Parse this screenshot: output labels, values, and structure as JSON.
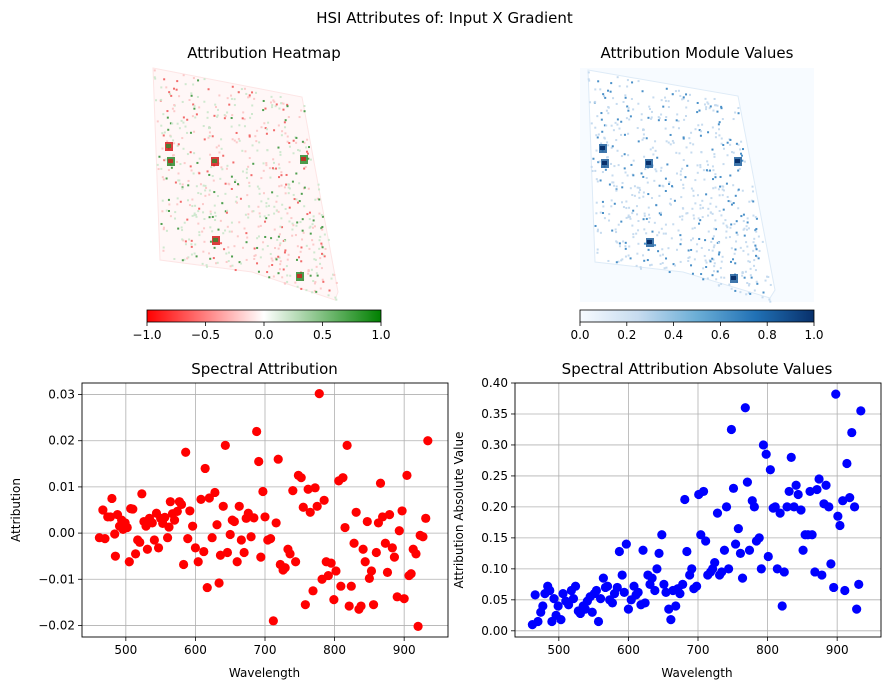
{
  "suptitle": "HSI Attributes of: Input X Gradient",
  "heatmap": {
    "title": "Attribution Heatmap",
    "colorbar_ticks": [
      "−1.0",
      "−0.5",
      "0.0",
      "0.5",
      "1.0"
    ],
    "colors": {
      "neg": "#ff0000",
      "mid": "#ffffff",
      "pos": "#008000"
    }
  },
  "module": {
    "title": "Attribution Module Values",
    "colorbar_ticks": [
      "0.0",
      "0.2",
      "0.4",
      "0.6",
      "0.8",
      "1.0"
    ],
    "colors": {
      "low": "#f7fbff",
      "high": "#08306b"
    }
  },
  "chart_data": [
    {
      "type": "scatter",
      "title": "Spectral Attribution",
      "xlabel": "Wavelength",
      "ylabel": "Attribution",
      "xlim": [
        437,
        963
      ],
      "ylim": [
        -0.0225,
        0.0325
      ],
      "xticks": [
        500,
        600,
        700,
        800,
        900
      ],
      "yticks": [
        -0.02,
        -0.01,
        0.0,
        0.01,
        0.02,
        0.03
      ],
      "ytick_labels": [
        "−0.02",
        "−0.01",
        "0.00",
        "0.01",
        "0.02",
        "0.03"
      ],
      "grid": true,
      "color": "#ff0000",
      "points": [
        [
          462,
          -0.001
        ],
        [
          467,
          0.005
        ],
        [
          470,
          -0.0012
        ],
        [
          474,
          0.0035
        ],
        [
          478,
          0.0035
        ],
        [
          480,
          0.0075
        ],
        [
          484,
          -0.0002
        ],
        [
          485,
          -0.005
        ],
        [
          488,
          0.004
        ],
        [
          491,
          0.0015
        ],
        [
          494,
          0.0028
        ],
        [
          496,
          0.0008
        ],
        [
          499,
          0.0022
        ],
        [
          502,
          0.0012
        ],
        [
          505,
          -0.0062
        ],
        [
          507,
          0.0053
        ],
        [
          510,
          0.0052
        ],
        [
          514,
          -0.0045
        ],
        [
          517,
          -0.0015
        ],
        [
          520,
          -0.002
        ],
        [
          523,
          0.0085
        ],
        [
          526,
          0.0025
        ],
        [
          529,
          0.0015
        ],
        [
          531,
          -0.0035
        ],
        [
          534,
          0.0032
        ],
        [
          538,
          0.0022
        ],
        [
          541,
          -0.0015
        ],
        [
          544,
          0.0043
        ],
        [
          547,
          -0.0032
        ],
        [
          550,
          0.0032
        ],
        [
          553,
          0.0021
        ],
        [
          556,
          0.0034
        ],
        [
          560,
          -0.001
        ],
        [
          562,
          0.0013
        ],
        [
          564,
          0.0068
        ],
        [
          567,
          0.0042
        ],
        [
          570,
          0.0028
        ],
        [
          574,
          0.0047
        ],
        [
          577,
          0.0068
        ],
        [
          580,
          0.0062
        ],
        [
          583,
          -0.0068
        ],
        [
          586,
          0.0175
        ],
        [
          589,
          -0.0012
        ],
        [
          592,
          0.0048
        ],
        [
          596,
          0.0015
        ],
        [
          600,
          -0.0032
        ],
        [
          604,
          -0.0062
        ],
        [
          608,
          0.0073
        ],
        [
          612,
          -0.004
        ],
        [
          614,
          0.014
        ],
        [
          617,
          -0.0118
        ],
        [
          620,
          0.0076
        ],
        [
          624,
          -0.001
        ],
        [
          628,
          0.0088
        ],
        [
          631,
          0.0018
        ],
        [
          634,
          -0.0108
        ],
        [
          636,
          -0.0048
        ],
        [
          640,
          0.0058
        ],
        [
          643,
          0.019
        ],
        [
          646,
          -0.0042
        ],
        [
          650,
          -0.0003
        ],
        [
          653,
          0.0028
        ],
        [
          656,
          0.0025
        ],
        [
          660,
          -0.0062
        ],
        [
          663,
          0.0058
        ],
        [
          666,
          -0.0015
        ],
        [
          670,
          -0.0042
        ],
        [
          673,
          0.0032
        ],
        [
          676,
          0.0043
        ],
        [
          680,
          -0.0008
        ],
        [
          684,
          0.0033
        ],
        [
          688,
          0.022
        ],
        [
          691,
          0.0155
        ],
        [
          694,
          -0.0052
        ],
        [
          697,
          0.009
        ],
        [
          700,
          0.0035
        ],
        [
          704,
          -0.0015
        ],
        [
          708,
          -0.0012
        ],
        [
          712,
          -0.019
        ],
        [
          716,
          0.0022
        ],
        [
          719,
          0.016
        ],
        [
          722,
          -0.0068
        ],
        [
          726,
          -0.008
        ],
        [
          729,
          -0.0075
        ],
        [
          733,
          -0.0035
        ],
        [
          736,
          -0.0045
        ],
        [
          740,
          0.0092
        ],
        [
          744,
          -0.0062
        ],
        [
          748,
          0.0125
        ],
        [
          752,
          0.012
        ],
        [
          755,
          0.0056
        ],
        [
          758,
          -0.0155
        ],
        [
          762,
          0.0095
        ],
        [
          765,
          0.0045
        ],
        [
          769,
          -0.0125
        ],
        [
          772,
          0.0098
        ],
        [
          775,
          0.0058
        ],
        [
          778,
          0.0302
        ],
        [
          782,
          -0.01
        ],
        [
          785,
          0.0071
        ],
        [
          788,
          -0.0062
        ],
        [
          791,
          -0.0092
        ],
        [
          795,
          -0.0065
        ],
        [
          799,
          -0.0144
        ],
        [
          802,
          -0.0082
        ],
        [
          806,
          0.0113
        ],
        [
          809,
          -0.0115
        ],
        [
          812,
          0.012
        ],
        [
          815,
          0.0012
        ],
        [
          818,
          0.019
        ],
        [
          821,
          -0.0158
        ],
        [
          824,
          -0.0115
        ],
        [
          828,
          -0.0022
        ],
        [
          831,
          0.0045
        ],
        [
          835,
          -0.0165
        ],
        [
          838,
          -0.0158
        ],
        [
          841,
          -0.0035
        ],
        [
          844,
          -0.0062
        ],
        [
          847,
          0.0025
        ],
        [
          850,
          -0.0098
        ],
        [
          853,
          -0.0082
        ],
        [
          856,
          -0.0155
        ],
        [
          860,
          -0.0042
        ],
        [
          863,
          0.0022
        ],
        [
          866,
          0.0108
        ],
        [
          869,
          0.0035
        ],
        [
          873,
          -0.0022
        ],
        [
          876,
          -0.0085
        ],
        [
          879,
          0.004
        ],
        [
          883,
          -0.0032
        ],
        [
          886,
          -0.0052
        ],
        [
          890,
          -0.0138
        ],
        [
          893,
          0.0005
        ],
        [
          897,
          0.0048
        ],
        [
          900,
          -0.0142
        ],
        [
          904,
          0.0125
        ],
        [
          907,
          -0.0092
        ],
        [
          910,
          -0.0088
        ],
        [
          913,
          -0.0035
        ],
        [
          917,
          -0.0045
        ],
        [
          920,
          -0.0202
        ],
        [
          923,
          -0.0005
        ],
        [
          927,
          -0.0008
        ],
        [
          931,
          0.0032
        ],
        [
          934,
          0.02
        ]
      ]
    },
    {
      "type": "scatter",
      "title": "Spectral Attribution Absolute Values",
      "xlabel": "Wavelength",
      "ylabel": "Attribution Absolute Value",
      "xlim": [
        437,
        963
      ],
      "ylim": [
        -0.01,
        0.4
      ],
      "xticks": [
        500,
        600,
        700,
        800,
        900
      ],
      "yticks": [
        0.0,
        0.05,
        0.1,
        0.15,
        0.2,
        0.25,
        0.3,
        0.35,
        0.4
      ],
      "ytick_labels": [
        "0.00",
        "0.05",
        "0.10",
        "0.15",
        "0.20",
        "0.25",
        "0.30",
        "0.35",
        "0.40"
      ],
      "grid": true,
      "color": "#0000ff",
      "points": [
        [
          462,
          0.01
        ],
        [
          466,
          0.058
        ],
        [
          470,
          0.015
        ],
        [
          474,
          0.03
        ],
        [
          477,
          0.04
        ],
        [
          480,
          0.06
        ],
        [
          484,
          0.072
        ],
        [
          487,
          0.065
        ],
        [
          490,
          0.015
        ],
        [
          493,
          0.052
        ],
        [
          496,
          0.025
        ],
        [
          499,
          0.04
        ],
        [
          503,
          0.018
        ],
        [
          506,
          0.06
        ],
        [
          510,
          0.048
        ],
        [
          514,
          0.042
        ],
        [
          518,
          0.065
        ],
        [
          521,
          0.052
        ],
        [
          524,
          0.072
        ],
        [
          528,
          0.032
        ],
        [
          531,
          0.028
        ],
        [
          535,
          0.04
        ],
        [
          538,
          0.035
        ],
        [
          541,
          0.048
        ],
        [
          545,
          0.055
        ],
        [
          548,
          0.03
        ],
        [
          551,
          0.06
        ],
        [
          554,
          0.065
        ],
        [
          557,
          0.015
        ],
        [
          560,
          0.052
        ],
        [
          564,
          0.085
        ],
        [
          567,
          0.07
        ],
        [
          570,
          0.072
        ],
        [
          573,
          0.05
        ],
        [
          577,
          0.045
        ],
        [
          580,
          0.06
        ],
        [
          584,
          0.07
        ],
        [
          587,
          0.128
        ],
        [
          591,
          0.09
        ],
        [
          594,
          0.062
        ],
        [
          597,
          0.14
        ],
        [
          600,
          0.035
        ],
        [
          604,
          0.05
        ],
        [
          608,
          0.072
        ],
        [
          611,
          0.058
        ],
        [
          614,
          0.062
        ],
        [
          618,
          0.042
        ],
        [
          621,
          0.13
        ],
        [
          624,
          0.045
        ],
        [
          628,
          0.09
        ],
        [
          631,
          0.075
        ],
        [
          634,
          0.085
        ],
        [
          638,
          0.065
        ],
        [
          641,
          0.1
        ],
        [
          644,
          0.125
        ],
        [
          648,
          0.155
        ],
        [
          651,
          0.075
        ],
        [
          654,
          0.062
        ],
        [
          658,
          0.035
        ],
        [
          661,
          0.018
        ],
        [
          664,
          0.065
        ],
        [
          668,
          0.04
        ],
        [
          671,
          0.068
        ],
        [
          674,
          0.06
        ],
        [
          678,
          0.075
        ],
        [
          681,
          0.212
        ],
        [
          684,
          0.128
        ],
        [
          688,
          0.09
        ],
        [
          691,
          0.1
        ],
        [
          694,
          0.068
        ],
        [
          698,
          0.072
        ],
        [
          701,
          0.22
        ],
        [
          704,
          0.155
        ],
        [
          708,
          0.225
        ],
        [
          711,
          0.145
        ],
        [
          714,
          0.09
        ],
        [
          718,
          0.095
        ],
        [
          721,
          0.1
        ],
        [
          724,
          0.11
        ],
        [
          728,
          0.19
        ],
        [
          731,
          0.09
        ],
        [
          734,
          0.095
        ],
        [
          738,
          0.13
        ],
        [
          741,
          0.2
        ],
        [
          744,
          0.1
        ],
        [
          748,
          0.325
        ],
        [
          751,
          0.23
        ],
        [
          754,
          0.14
        ],
        [
          758,
          0.165
        ],
        [
          761,
          0.125
        ],
        [
          764,
          0.085
        ],
        [
          768,
          0.36
        ],
        [
          771,
          0.24
        ],
        [
          774,
          0.13
        ],
        [
          778,
          0.21
        ],
        [
          781,
          0.2
        ],
        [
          784,
          0.145
        ],
        [
          788,
          0.15
        ],
        [
          791,
          0.1
        ],
        [
          794,
          0.3
        ],
        [
          798,
          0.285
        ],
        [
          801,
          0.12
        ],
        [
          804,
          0.26
        ],
        [
          808,
          0.198
        ],
        [
          811,
          0.2
        ],
        [
          814,
          0.1
        ],
        [
          818,
          0.19
        ],
        [
          821,
          0.04
        ],
        [
          824,
          0.095
        ],
        [
          828,
          0.2
        ],
        [
          831,
          0.225
        ],
        [
          834,
          0.28
        ],
        [
          838,
          0.2
        ],
        [
          841,
          0.235
        ],
        [
          844,
          0.22
        ],
        [
          848,
          0.195
        ],
        [
          851,
          0.13
        ],
        [
          854,
          0.155
        ],
        [
          858,
          0.155
        ],
        [
          861,
          0.225
        ],
        [
          864,
          0.155
        ],
        [
          868,
          0.095
        ],
        [
          871,
          0.228
        ],
        [
          874,
          0.245
        ],
        [
          878,
          0.09
        ],
        [
          881,
          0.205
        ],
        [
          884,
          0.235
        ],
        [
          888,
          0.2
        ],
        [
          891,
          0.108
        ],
        [
          895,
          0.07
        ],
        [
          898,
          0.382
        ],
        [
          901,
          0.185
        ],
        [
          904,
          0.17
        ],
        [
          908,
          0.21
        ],
        [
          911,
          0.065
        ],
        [
          914,
          0.27
        ],
        [
          918,
          0.215
        ],
        [
          921,
          0.32
        ],
        [
          925,
          0.2
        ],
        [
          928,
          0.035
        ],
        [
          931,
          0.075
        ],
        [
          934,
          0.355
        ]
      ]
    }
  ]
}
